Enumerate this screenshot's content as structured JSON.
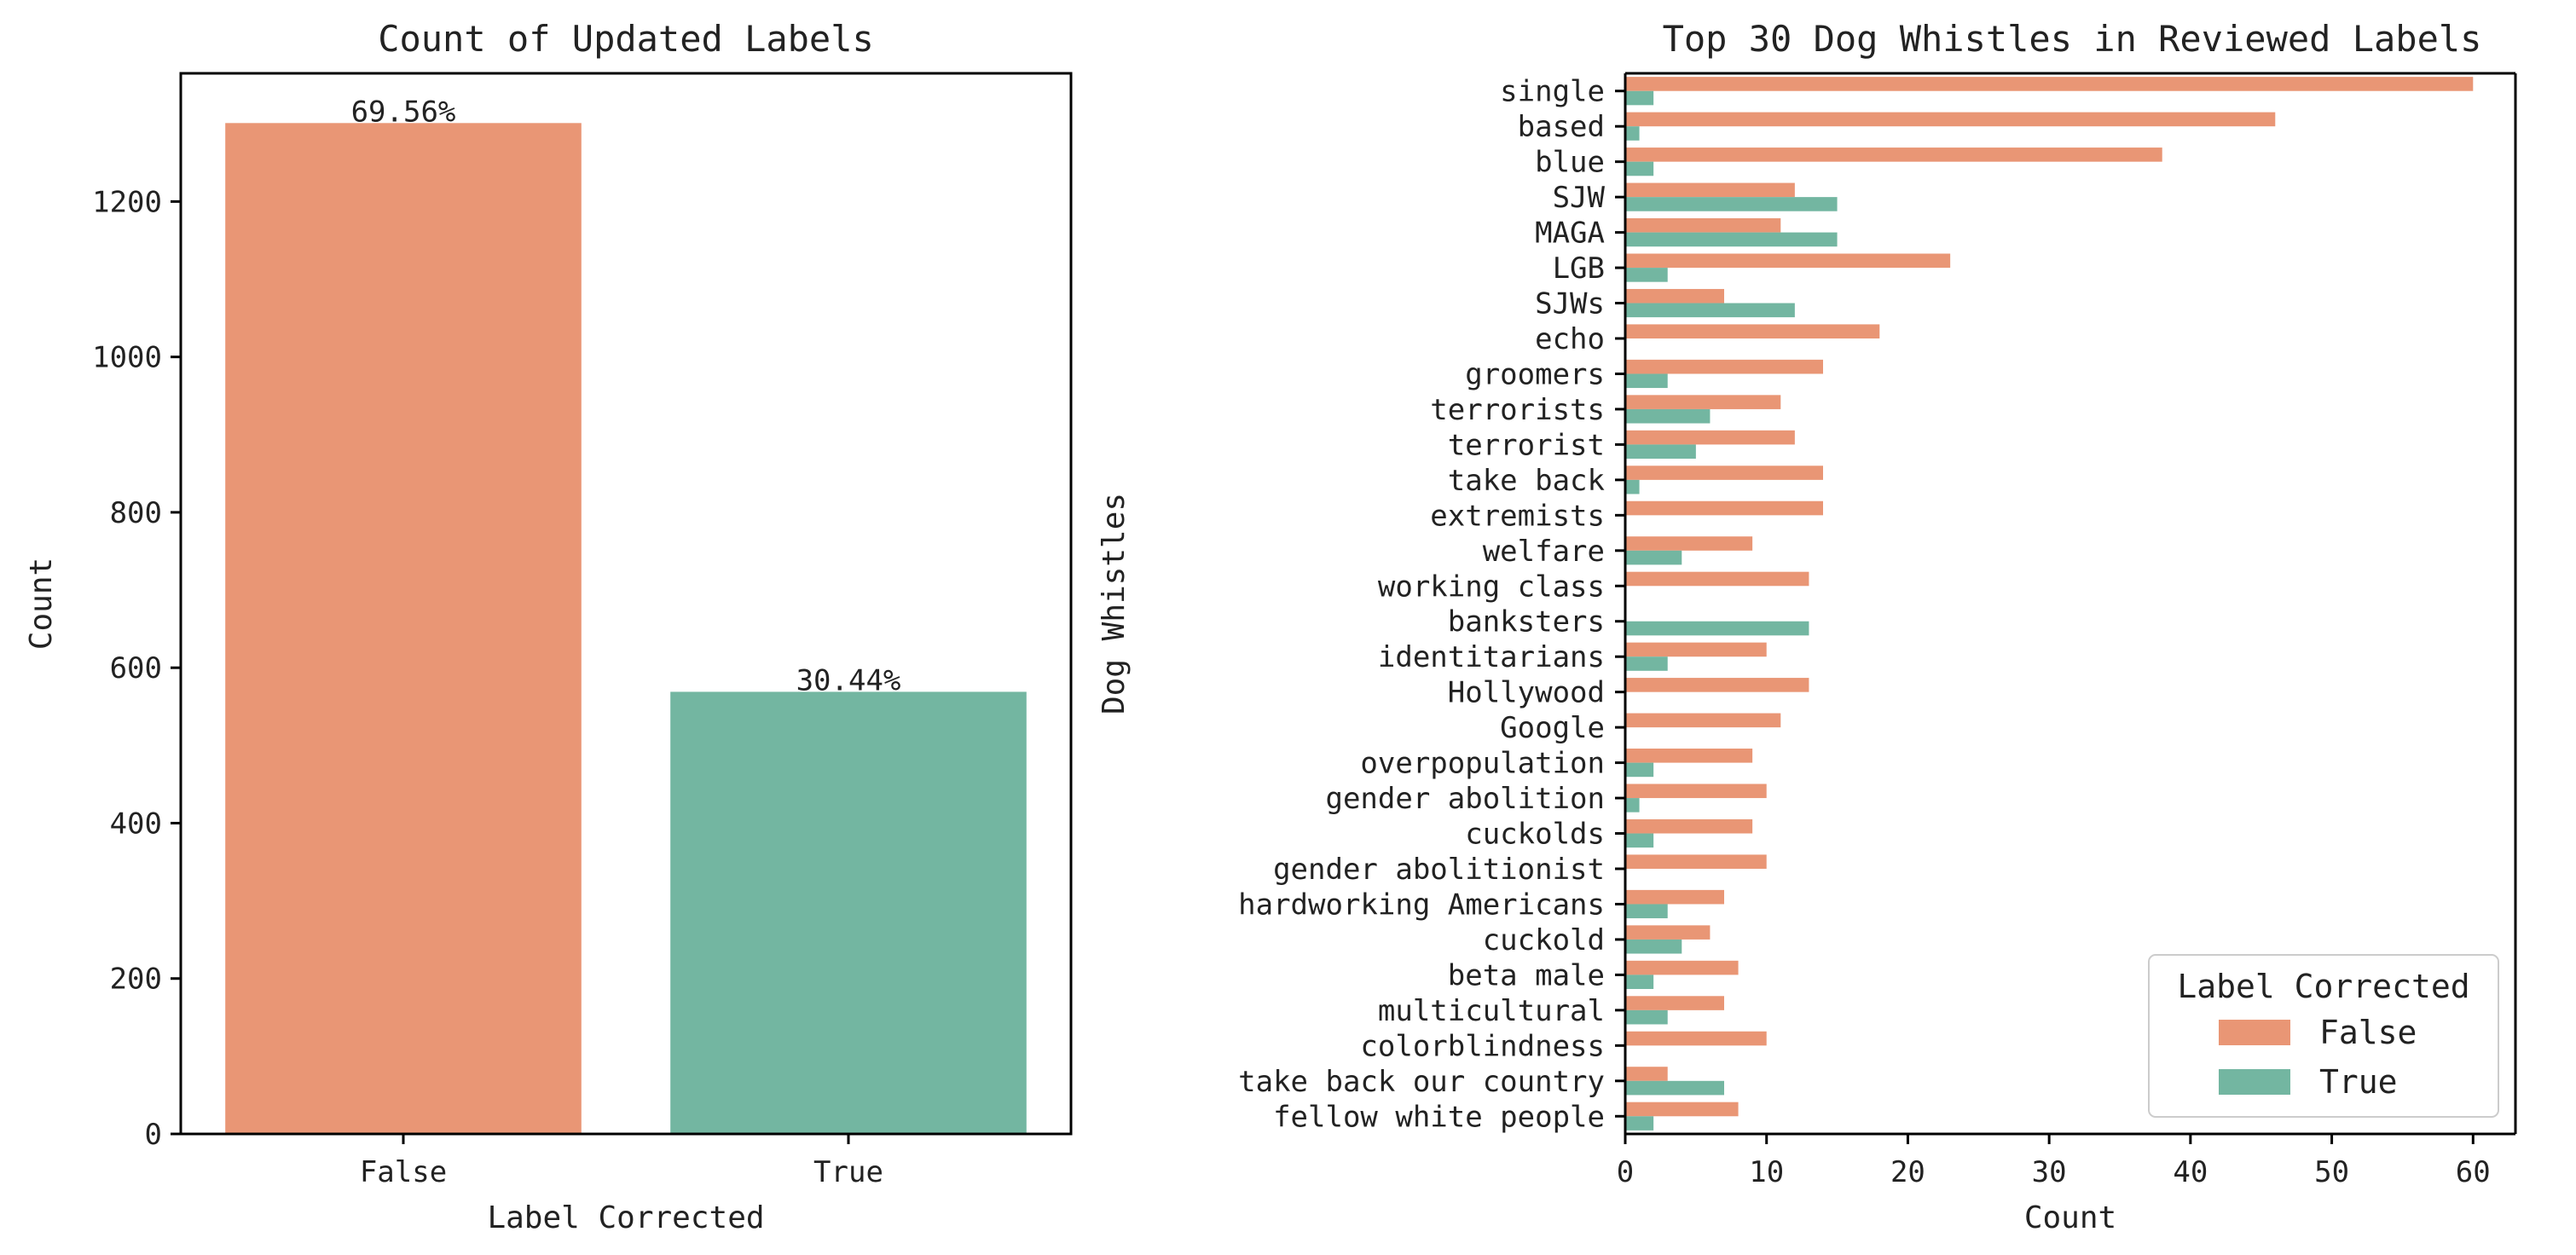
{
  "colors": {
    "false": "#e99675",
    "true": "#73b6a1",
    "axis": "#000000"
  },
  "chart_data": [
    {
      "type": "bar",
      "title": "Count of Updated Labels",
      "xlabel": "Label Corrected",
      "ylabel": "Count",
      "categories": [
        "False",
        "True"
      ],
      "values": [
        1301,
        569
      ],
      "data_labels": [
        "69.56%",
        "30.44%"
      ],
      "ylim": [
        0,
        1365
      ],
      "yticks": [
        0,
        200,
        400,
        600,
        800,
        1000,
        1200
      ],
      "legend": null
    },
    {
      "type": "bar",
      "orientation": "horizontal",
      "title": "Top 30 Dog Whistles in Reviewed Labels",
      "xlabel": "Count",
      "ylabel": "Dog Whistles",
      "categories": [
        "single",
        "based",
        "blue",
        "SJW",
        "MAGA",
        "LGB",
        "SJWs",
        "echo",
        "groomers",
        "terrorists",
        "terrorist",
        "take back",
        "extremists",
        "welfare",
        "working class",
        "banksters",
        "identitarians",
        "Hollywood",
        "Google",
        "overpopulation",
        "gender abolition",
        "cuckolds",
        "gender abolitionist",
        "hardworking Americans",
        "cuckold",
        "beta male",
        "multicultural",
        "colorblindness",
        "take back our country",
        "fellow white people"
      ],
      "series": [
        {
          "name": "False",
          "values": [
            60,
            46,
            38,
            12,
            11,
            23,
            7,
            18,
            14,
            11,
            12,
            14,
            14,
            9,
            13,
            0,
            10,
            13,
            11,
            9,
            10,
            9,
            10,
            7,
            6,
            8,
            7,
            10,
            3,
            8
          ]
        },
        {
          "name": "True",
          "values": [
            2,
            1,
            2,
            15,
            15,
            3,
            12,
            0,
            3,
            6,
            5,
            1,
            0,
            4,
            0,
            13,
            3,
            0,
            0,
            2,
            1,
            2,
            0,
            3,
            4,
            2,
            3,
            0,
            7,
            2
          ]
        }
      ],
      "xlim": [
        0,
        63
      ],
      "xticks": [
        0,
        10,
        20,
        30,
        40,
        50,
        60
      ],
      "legend": {
        "title": "Label Corrected",
        "entries": [
          "False",
          "True"
        ],
        "placement": "bottom-right"
      }
    }
  ]
}
